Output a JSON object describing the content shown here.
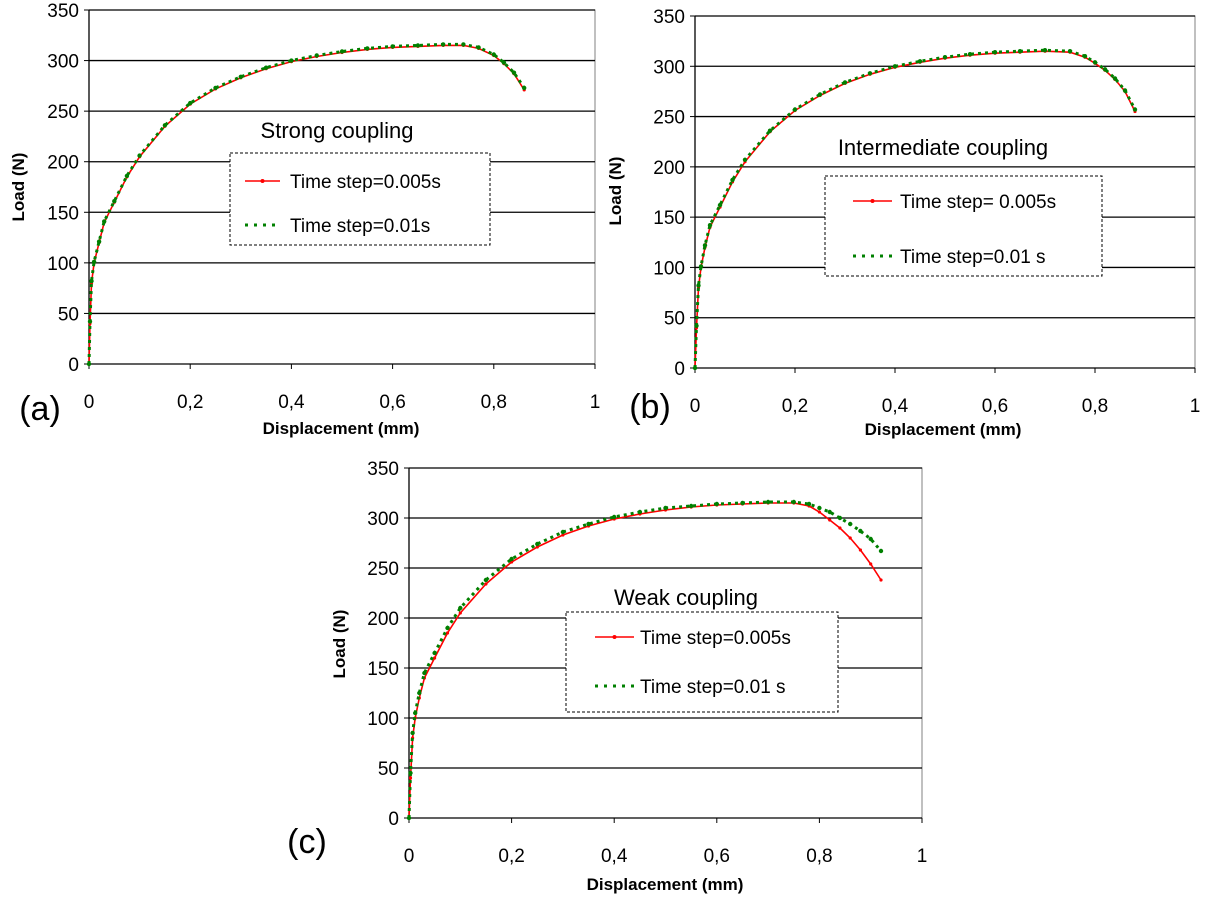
{
  "chart_data": [
    {
      "type": "line",
      "panel_label": "(a)",
      "annotation": "Strong coupling",
      "xlabel": "Displacement (mm)",
      "ylabel": "Load (N)",
      "xlim": [
        0,
        1
      ],
      "ylim": [
        0,
        350
      ],
      "x_ticks": [
        "0",
        "0,2",
        "0,4",
        "0,6",
        "0,8",
        "1"
      ],
      "y_ticks": [
        "0",
        "50",
        "100",
        "150",
        "200",
        "250",
        "300",
        "350"
      ],
      "grid": "horizontal",
      "legend_position": "center",
      "series": [
        {
          "name": "Time step=0.005s",
          "color": "#ff0000",
          "style": "solid-with-markers",
          "points": [
            [
              0,
              0
            ],
            [
              0.002,
              40
            ],
            [
              0.005,
              80
            ],
            [
              0.01,
              100
            ],
            [
              0.02,
              120
            ],
            [
              0.03,
              140
            ],
            [
              0.05,
              160
            ],
            [
              0.075,
              185
            ],
            [
              0.1,
              205
            ],
            [
              0.15,
              235
            ],
            [
              0.2,
              257
            ],
            [
              0.25,
              272
            ],
            [
              0.3,
              283
            ],
            [
              0.35,
              292
            ],
            [
              0.4,
              299
            ],
            [
              0.45,
              304
            ],
            [
              0.5,
              308
            ],
            [
              0.55,
              311
            ],
            [
              0.6,
              313
            ],
            [
              0.65,
              314
            ],
            [
              0.7,
              315
            ],
            [
              0.74,
              315
            ],
            [
              0.77,
              312
            ],
            [
              0.8,
              305
            ],
            [
              0.82,
              297
            ],
            [
              0.84,
              287
            ],
            [
              0.86,
              271
            ]
          ]
        },
        {
          "name": "Time step=0.01s",
          "color": "#008000",
          "style": "dashed",
          "points": [
            [
              0,
              0
            ],
            [
              0.002,
              42
            ],
            [
              0.005,
              82
            ],
            [
              0.01,
              101
            ],
            [
              0.02,
              121
            ],
            [
              0.03,
              141
            ],
            [
              0.05,
              161
            ],
            [
              0.075,
              186
            ],
            [
              0.1,
              206
            ],
            [
              0.15,
              236
            ],
            [
              0.2,
              258
            ],
            [
              0.25,
              273
            ],
            [
              0.3,
              284
            ],
            [
              0.35,
              293
            ],
            [
              0.4,
              300
            ],
            [
              0.45,
              305
            ],
            [
              0.5,
              309
            ],
            [
              0.55,
              312
            ],
            [
              0.6,
              314
            ],
            [
              0.65,
              315
            ],
            [
              0.7,
              316
            ],
            [
              0.74,
              316
            ],
            [
              0.77,
              313
            ],
            [
              0.8,
              306
            ],
            [
              0.82,
              298
            ],
            [
              0.84,
              288
            ],
            [
              0.86,
              273
            ]
          ]
        }
      ]
    },
    {
      "type": "line",
      "panel_label": "(b)",
      "annotation": "Intermediate coupling",
      "xlabel": "Displacement (mm)",
      "ylabel": "Load (N)",
      "xlim": [
        0,
        1
      ],
      "ylim": [
        0,
        350
      ],
      "x_ticks": [
        "0",
        "0,2",
        "0,4",
        "0,6",
        "0,8",
        "1"
      ],
      "y_ticks": [
        "0",
        "50",
        "100",
        "150",
        "200",
        "250",
        "300",
        "350"
      ],
      "grid": "horizontal",
      "legend_position": "center",
      "series": [
        {
          "name": "Time step= 0.005s",
          "color": "#ff0000",
          "style": "solid-with-markers",
          "points": [
            [
              0,
              0
            ],
            [
              0.003,
              40
            ],
            [
              0.007,
              80
            ],
            [
              0.012,
              100
            ],
            [
              0.02,
              120
            ],
            [
              0.03,
              140
            ],
            [
              0.05,
              160
            ],
            [
              0.075,
              185
            ],
            [
              0.1,
              205
            ],
            [
              0.15,
              235
            ],
            [
              0.2,
              256
            ],
            [
              0.25,
              271
            ],
            [
              0.3,
              283
            ],
            [
              0.35,
              292
            ],
            [
              0.4,
              299
            ],
            [
              0.45,
              304
            ],
            [
              0.5,
              308
            ],
            [
              0.55,
              311
            ],
            [
              0.6,
              313
            ],
            [
              0.65,
              314
            ],
            [
              0.7,
              315
            ],
            [
              0.75,
              314
            ],
            [
              0.78,
              309
            ],
            [
              0.8,
              303
            ],
            [
              0.82,
              296
            ],
            [
              0.84,
              287
            ],
            [
              0.86,
              275
            ],
            [
              0.88,
              255
            ]
          ]
        },
        {
          "name": "Time step=0.01 s",
          "color": "#008000",
          "style": "dashed",
          "points": [
            [
              0,
              0
            ],
            [
              0.003,
              42
            ],
            [
              0.007,
              82
            ],
            [
              0.012,
              101
            ],
            [
              0.02,
              122
            ],
            [
              0.03,
              142
            ],
            [
              0.05,
              162
            ],
            [
              0.075,
              187
            ],
            [
              0.1,
              207
            ],
            [
              0.15,
              236
            ],
            [
              0.2,
              257
            ],
            [
              0.25,
              272
            ],
            [
              0.3,
              284
            ],
            [
              0.35,
              293
            ],
            [
              0.4,
              300
            ],
            [
              0.45,
              305
            ],
            [
              0.5,
              309
            ],
            [
              0.55,
              312
            ],
            [
              0.6,
              314
            ],
            [
              0.65,
              315
            ],
            [
              0.7,
              316
            ],
            [
              0.75,
              315
            ],
            [
              0.78,
              310
            ],
            [
              0.8,
              304
            ],
            [
              0.82,
              297
            ],
            [
              0.84,
              288
            ],
            [
              0.86,
              276
            ],
            [
              0.88,
              257
            ]
          ]
        }
      ]
    },
    {
      "type": "line",
      "panel_label": "(c)",
      "annotation": "Weak coupling",
      "xlabel": "Displacement (mm)",
      "ylabel": "Load (N)",
      "xlim": [
        0,
        1
      ],
      "ylim": [
        0,
        350
      ],
      "x_ticks": [
        "0",
        "0,2",
        "0,4",
        "0,6",
        "0,8",
        "1"
      ],
      "y_ticks": [
        "0",
        "50",
        "100",
        "150",
        "200",
        "250",
        "300",
        "350"
      ],
      "grid": "horizontal",
      "legend_position": "center-right",
      "series": [
        {
          "name": "Time step=0.005s",
          "color": "#ff0000",
          "style": "solid-with-markers",
          "points": [
            [
              0,
              0
            ],
            [
              0.003,
              40
            ],
            [
              0.007,
              80
            ],
            [
              0.012,
              100
            ],
            [
              0.02,
              120
            ],
            [
              0.03,
              140
            ],
            [
              0.05,
              160
            ],
            [
              0.075,
              185
            ],
            [
              0.1,
              205
            ],
            [
              0.15,
              234
            ],
            [
              0.2,
              256
            ],
            [
              0.25,
              271
            ],
            [
              0.3,
              283
            ],
            [
              0.35,
              292
            ],
            [
              0.4,
              299
            ],
            [
              0.45,
              304
            ],
            [
              0.5,
              308
            ],
            [
              0.55,
              311
            ],
            [
              0.6,
              313
            ],
            [
              0.65,
              314
            ],
            [
              0.7,
              315
            ],
            [
              0.75,
              315
            ],
            [
              0.78,
              312
            ],
            [
              0.8,
              306
            ],
            [
              0.82,
              298
            ],
            [
              0.84,
              290
            ],
            [
              0.86,
              280
            ],
            [
              0.88,
              268
            ],
            [
              0.9,
              254
            ],
            [
              0.92,
              238
            ]
          ]
        },
        {
          "name": "Time step=0.01 s",
          "color": "#008000",
          "style": "dashed",
          "points": [
            [
              0,
              0
            ],
            [
              0.003,
              45
            ],
            [
              0.007,
              85
            ],
            [
              0.012,
              105
            ],
            [
              0.02,
              125
            ],
            [
              0.03,
              145
            ],
            [
              0.05,
              165
            ],
            [
              0.075,
              190
            ],
            [
              0.1,
              210
            ],
            [
              0.15,
              238
            ],
            [
              0.2,
              259
            ],
            [
              0.25,
              274
            ],
            [
              0.3,
              286
            ],
            [
              0.35,
              294
            ],
            [
              0.4,
              301
            ],
            [
              0.45,
              306
            ],
            [
              0.5,
              310
            ],
            [
              0.55,
              312
            ],
            [
              0.6,
              314
            ],
            [
              0.65,
              315
            ],
            [
              0.7,
              316
            ],
            [
              0.75,
              316
            ],
            [
              0.78,
              314
            ],
            [
              0.8,
              310
            ],
            [
              0.82,
              306
            ],
            [
              0.84,
              300
            ],
            [
              0.86,
              294
            ],
            [
              0.88,
              287
            ],
            [
              0.9,
              279
            ],
            [
              0.92,
              267
            ]
          ]
        }
      ]
    }
  ]
}
